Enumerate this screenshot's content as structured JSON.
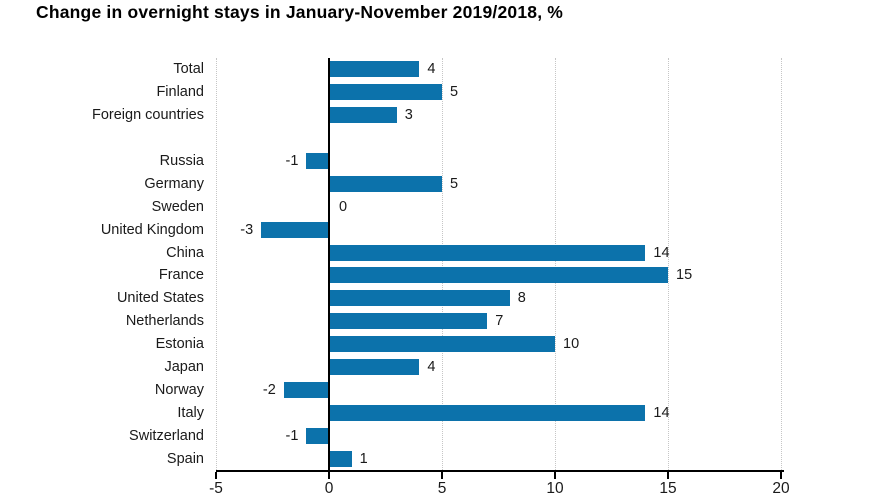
{
  "title": "Change in overnight stays in January-November 2019/2018, %",
  "chart_data": {
    "type": "bar",
    "orientation": "horizontal",
    "title": "Change in overnight stays in January-November 2019/2018, %",
    "rows": [
      {
        "label": "Total",
        "value": 4
      },
      {
        "label": "Finland",
        "value": 5
      },
      {
        "label": "Foreign countries",
        "value": 3
      },
      {
        "label": "",
        "value": null
      },
      {
        "label": "Russia",
        "value": -1
      },
      {
        "label": "Germany",
        "value": 5
      },
      {
        "label": "Sweden",
        "value": 0
      },
      {
        "label": "United Kingdom",
        "value": -3
      },
      {
        "label": "China",
        "value": 14
      },
      {
        "label": "France",
        "value": 15
      },
      {
        "label": "United States",
        "value": 8
      },
      {
        "label": "Netherlands",
        "value": 7
      },
      {
        "label": "Estonia",
        "value": 10
      },
      {
        "label": "Japan",
        "value": 4
      },
      {
        "label": "Norway",
        "value": -2
      },
      {
        "label": "Italy",
        "value": 14
      },
      {
        "label": "Switzerland",
        "value": -1
      },
      {
        "label": "Spain",
        "value": 1
      }
    ],
    "x_ticks": [
      -5,
      0,
      5,
      10,
      15,
      20
    ],
    "xlim": [
      -5,
      20
    ],
    "grid": "vertical dotted lines at ticks, solid black line at zero",
    "legend": "none",
    "value_labels_shown": true,
    "bar_color": "#0c72ab",
    "grid_color": "#c6c6c6",
    "axis_color": "#000000",
    "text_color": "#1a1a1a"
  }
}
